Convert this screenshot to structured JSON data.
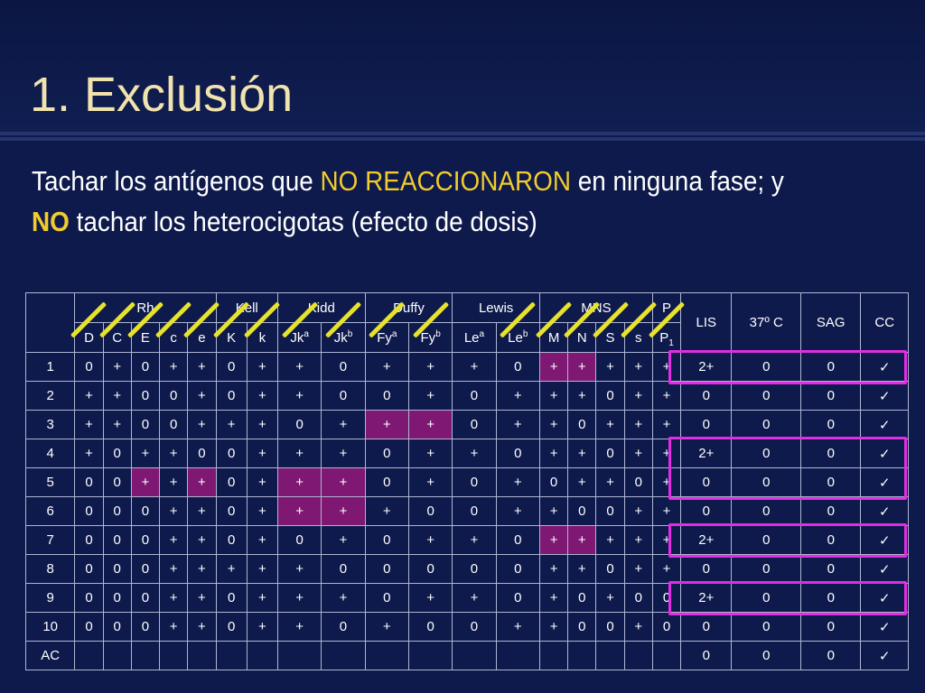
{
  "slide": {
    "title": "1. Exclusión",
    "instruction": {
      "part1": "Tachar los antígenos que ",
      "highlight1": "NO REACCIONARON",
      "part2": " en ninguna fase; y ",
      "highlight2": "NO",
      "part3": " tachar los heterocigotas (efecto de dosis)"
    }
  },
  "table": {
    "groups": [
      "Rh",
      "Kell",
      "Kidd",
      "Duffy",
      "Lewis",
      "MNS",
      "P"
    ],
    "phases": [
      "LIS",
      "37º C",
      "SAG",
      "CC"
    ],
    "antigens": [
      {
        "base": "D",
        "sup": ""
      },
      {
        "base": "C",
        "sup": ""
      },
      {
        "base": "E",
        "sup": ""
      },
      {
        "base": "c",
        "sup": ""
      },
      {
        "base": "e",
        "sup": ""
      },
      {
        "base": "K",
        "sup": ""
      },
      {
        "base": "k",
        "sup": ""
      },
      {
        "base": "Jk",
        "sup": "a"
      },
      {
        "base": "Jk",
        "sup": "b"
      },
      {
        "base": "Fy",
        "sup": "a"
      },
      {
        "base": "Fy",
        "sup": "b"
      },
      {
        "base": "Le",
        "sup": "a"
      },
      {
        "base": "Le",
        "sup": "b"
      },
      {
        "base": "M",
        "sup": ""
      },
      {
        "base": "N",
        "sup": ""
      },
      {
        "base": "S",
        "sup": ""
      },
      {
        "base": "s",
        "sup": ""
      },
      {
        "base": "P",
        "sub": "1"
      }
    ],
    "rows": [
      {
        "id": "1",
        "cells": [
          "0",
          "+",
          "0",
          "+",
          "+",
          "0",
          "+",
          "+",
          "0",
          "+",
          "+",
          "+",
          "0",
          "+",
          "+",
          "+",
          "+",
          "+"
        ],
        "results": [
          "2+",
          "0",
          "0",
          "✓"
        ]
      },
      {
        "id": "2",
        "cells": [
          "+",
          "+",
          "0",
          "0",
          "+",
          "0",
          "+",
          "+",
          "0",
          "0",
          "+",
          "0",
          "+",
          "+",
          "+",
          "0",
          "+",
          "+"
        ],
        "results": [
          "0",
          "0",
          "0",
          "✓"
        ]
      },
      {
        "id": "3",
        "cells": [
          "+",
          "+",
          "0",
          "0",
          "+",
          "+",
          "+",
          "0",
          "+",
          "+",
          "+",
          "0",
          "+",
          "+",
          "0",
          "+",
          "+",
          "+"
        ],
        "results": [
          "0",
          "0",
          "0",
          "✓"
        ]
      },
      {
        "id": "4",
        "cells": [
          "+",
          "0",
          "+",
          "+",
          "0",
          "0",
          "+",
          "+",
          "+",
          "0",
          "+",
          "+",
          "0",
          "+",
          "+",
          "0",
          "+",
          "+"
        ],
        "results": [
          "2+",
          "0",
          "0",
          "✓"
        ]
      },
      {
        "id": "5",
        "cells": [
          "0",
          "0",
          "+",
          "+",
          "+",
          "0",
          "+",
          "+",
          "+",
          "0",
          "+",
          "0",
          "+",
          "0",
          "+",
          "+",
          "0",
          "+"
        ],
        "results": [
          "0",
          "0",
          "0",
          "✓"
        ]
      },
      {
        "id": "6",
        "cells": [
          "0",
          "0",
          "0",
          "+",
          "+",
          "0",
          "+",
          "+",
          "+",
          "+",
          "0",
          "0",
          "+",
          "+",
          "0",
          "0",
          "+",
          "+"
        ],
        "results": [
          "0",
          "0",
          "0",
          "✓"
        ]
      },
      {
        "id": "7",
        "cells": [
          "0",
          "0",
          "0",
          "+",
          "+",
          "0",
          "+",
          "0",
          "+",
          "0",
          "+",
          "+",
          "0",
          "+",
          "+",
          "+",
          "+",
          "+"
        ],
        "results": [
          "2+",
          "0",
          "0",
          "✓"
        ]
      },
      {
        "id": "8",
        "cells": [
          "0",
          "0",
          "0",
          "+",
          "+",
          "+",
          "+",
          "+",
          "0",
          "0",
          "0",
          "0",
          "0",
          "+",
          "+",
          "0",
          "+",
          "+"
        ],
        "results": [
          "0",
          "0",
          "0",
          "✓"
        ]
      },
      {
        "id": "9",
        "cells": [
          "0",
          "0",
          "0",
          "+",
          "+",
          "0",
          "+",
          "+",
          "+",
          "0",
          "+",
          "+",
          "0",
          "+",
          "0",
          "+",
          "0",
          "0"
        ],
        "results": [
          "2+",
          "0",
          "0",
          "✓"
        ]
      },
      {
        "id": "10",
        "cells": [
          "0",
          "0",
          "0",
          "+",
          "+",
          "0",
          "+",
          "+",
          "0",
          "+",
          "0",
          "0",
          "+",
          "+",
          "0",
          "0",
          "+",
          "0"
        ],
        "results": [
          "0",
          "0",
          "0",
          "✓"
        ]
      }
    ],
    "control": {
      "id": "AC",
      "results": [
        "0",
        "0",
        "0",
        "✓"
      ]
    }
  },
  "annotation_colors": {
    "strike": "#e7e22c",
    "box": "#e22de2",
    "highlight_cell": "#7f1873",
    "title": "#f1e3ad",
    "emphasis": "#f2cc2c"
  }
}
